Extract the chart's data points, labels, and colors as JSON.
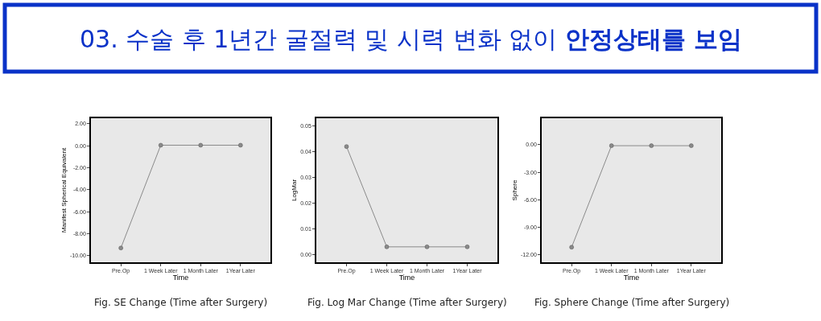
{
  "chart_data": [
    {
      "type": "line",
      "title": "03. 수술 후 1년간 굴절력 및 시력 변화 없이 안정상태를 보임",
      "categories": [
        "Pre.Op",
        "1 Week Later",
        "1 Month Later",
        "1Year Later"
      ],
      "values": [
        -9.3,
        0.05,
        0.05,
        0.05
      ],
      "color": "#8a8a8a",
      "marker": "circle",
      "xlabel": "Time",
      "ylabel": "Manifest Spherical Equivalent",
      "ylim": [
        -10.6,
        2.5
      ],
      "yticks": [
        {
          "value": 2,
          "label": "2.00"
        },
        {
          "value": 0,
          "label": "0.00"
        },
        {
          "value": -2,
          "label": "-2.00"
        },
        {
          "value": -4,
          "label": "-4.00"
        },
        {
          "value": -6,
          "label": "-6.00"
        },
        {
          "value": -8,
          "label": "-8.00"
        },
        {
          "value": -10,
          "label": "-10.00"
        }
      ],
      "annotations": [
        "Fig. SE Change (Time after Surgery)"
      ]
    },
    {
      "type": "line",
      "categories": [
        "Pre.Op",
        "1 Week Later",
        "1 Month Later",
        "1Year Later"
      ],
      "values": [
        0.042,
        0.003,
        0.003,
        0.003
      ],
      "color": "#8a8a8a",
      "marker": "circle",
      "xlabel": "Time",
      "ylabel": "LogMar",
      "ylim": [
        -0.003,
        0.053
      ],
      "yticks": [
        {
          "value": 0,
          "label": "0.00"
        },
        0.01,
        0.02,
        0.03,
        0.04,
        0.05
      ],
      "annotations": [
        "Fig. Log Mar Change (Time after Surgery)"
      ]
    },
    {
      "type": "line",
      "categories": [
        "Pre.Op",
        "1 Week Later",
        "1 Month Later",
        "1Year Later"
      ],
      "values": [
        -11.2,
        -0.1,
        -0.1,
        -0.1
      ],
      "color": "#8a8a8a",
      "marker": "circle",
      "xlabel": "Time",
      "ylabel": "Sphere",
      "ylim": [
        -12.85,
        2.9
      ],
      "yticks": [
        {
          "value": 0,
          "label": "0.00"
        },
        {
          "value": -3,
          "label": "-3.00"
        },
        {
          "value": -6,
          "label": "-6.00"
        },
        {
          "value": -9,
          "label": "-9.00"
        },
        {
          "value": -12,
          "label": "-12.00"
        }
      ],
      "annotations": [
        "Fig. Sphere Change (Time after Surgery)"
      ]
    }
  ]
}
